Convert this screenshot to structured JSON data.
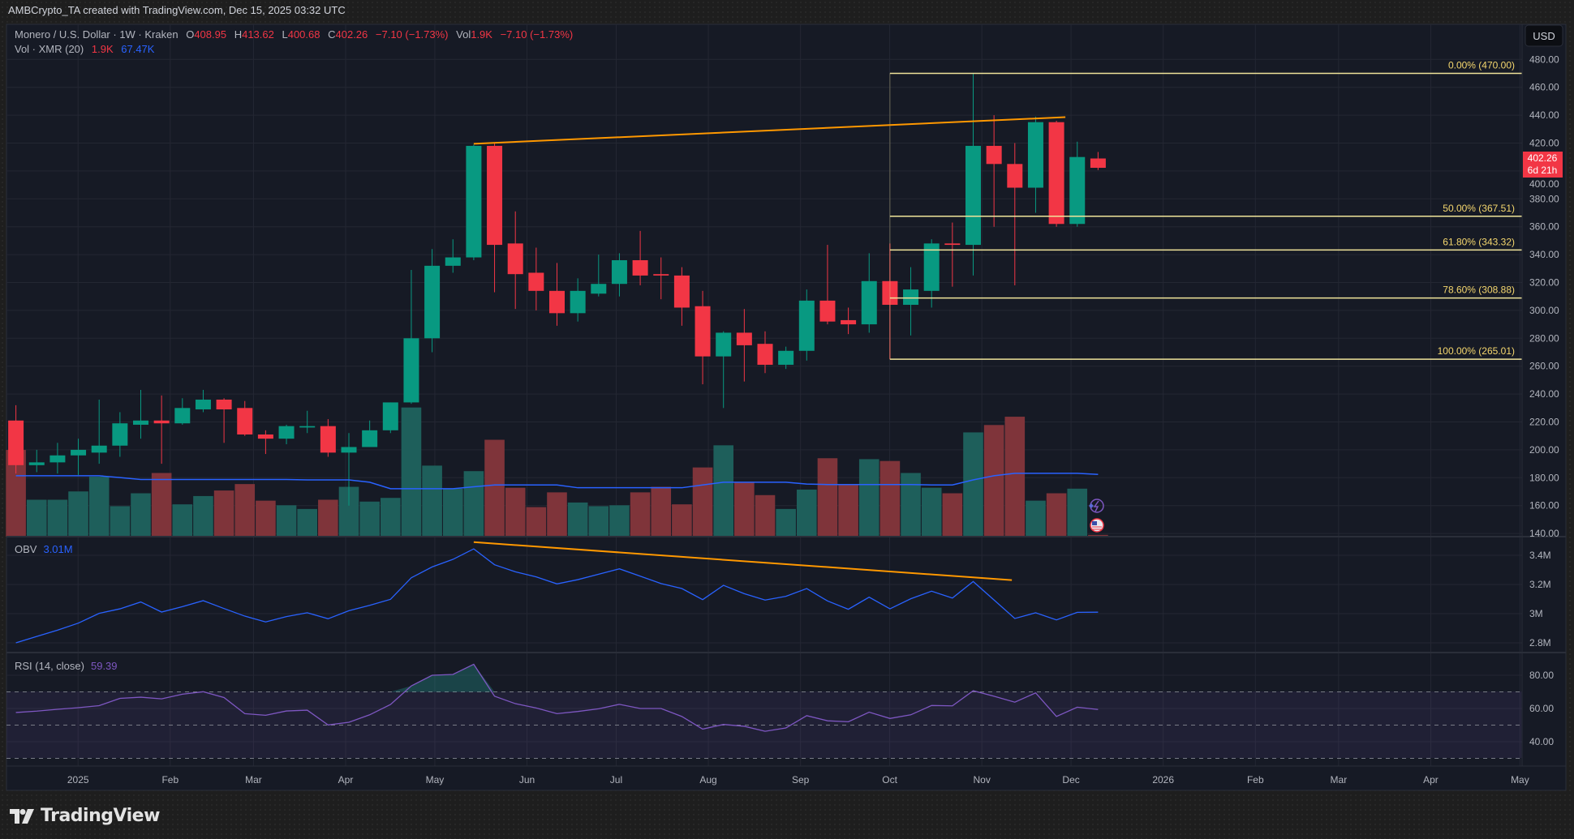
{
  "header": {
    "credit": "AMBCrypto_TA created with TradingView.com, Dec 15, 2025 03:32 UTC"
  },
  "legend": {
    "symbol": "Monero / U.S. Dollar · 1W · Kraken",
    "o_label": "O",
    "o": "408.95",
    "h_label": "H",
    "h": "413.62",
    "l_label": "L",
    "l": "400.68",
    "c_label": "C",
    "c": "402.26",
    "change": "−7.10 (−1.73%)",
    "vol_label": "Vol",
    "vol": "1.9K",
    "vol_change": "−7.10 (−1.73%)",
    "vol_study": "Vol · XMR (20)",
    "vol_value": "1.9K",
    "vol_ma_value": "67.47K",
    "obv_label": "OBV",
    "obv_value": "3.01M",
    "rsi_label": "RSI (14, close)",
    "rsi_value": "59.39"
  },
  "currency_button": "USD",
  "last_price": {
    "price": "402.26",
    "countdown": "6d 21h"
  },
  "logo": {
    "text": "TradingView"
  },
  "colors": {
    "up": "#089981",
    "down": "#f23645",
    "vol_up": "#1e5f5b",
    "vol_down": "#7f343a",
    "obv": "#2962ff",
    "vol_ma": "#2962ff",
    "rsi": "#7e57c2",
    "trendline": "#ff9800",
    "fib": "#f0e49a",
    "fib_text": "#f5d76e",
    "background": "#161a25",
    "grid": "#242733"
  },
  "chart_data": {
    "type": "candlestick",
    "interval": "1W",
    "price_axis": {
      "range": [
        140,
        480
      ],
      "ticks": [
        "480.00",
        "460.00",
        "440.00",
        "420.00",
        "400.00",
        "380.00",
        "360.00",
        "340.00",
        "320.00",
        "300.00",
        "280.00",
        "260.00",
        "240.00",
        "220.00",
        "200.00",
        "180.00",
        "160.00",
        "140.00"
      ]
    },
    "time_axis": {
      "ticks": [
        {
          "label": "2025",
          "date": "2025-01-01"
        },
        {
          "label": "Feb",
          "date": "2025-02-01"
        },
        {
          "label": "Mar",
          "date": "2025-03-01"
        },
        {
          "label": "Apr",
          "date": "2025-04-01"
        },
        {
          "label": "May",
          "date": "2025-05-01"
        },
        {
          "label": "Jun",
          "date": "2025-06-01"
        },
        {
          "label": "Jul",
          "date": "2025-07-01"
        },
        {
          "label": "Aug",
          "date": "2025-08-01"
        },
        {
          "label": "Sep",
          "date": "2025-09-01"
        },
        {
          "label": "Oct",
          "date": "2025-10-01"
        },
        {
          "label": "Nov",
          "date": "2025-11-01"
        },
        {
          "label": "Dec",
          "date": "2025-12-01"
        },
        {
          "label": "2026",
          "date": "2026-01-01"
        },
        {
          "label": "Feb",
          "date": "2026-02-01"
        },
        {
          "label": "Mar",
          "date": "2026-03-01"
        },
        {
          "label": "Apr",
          "date": "2026-04-01"
        },
        {
          "label": "May",
          "date": "2026-05-01"
        }
      ]
    },
    "dates": [
      "2024-12-16",
      "2024-12-23",
      "2024-12-30",
      "2025-01-06",
      "2025-01-13",
      "2025-01-20",
      "2025-01-27",
      "2025-02-03",
      "2025-02-10",
      "2025-02-17",
      "2025-02-24",
      "2025-03-03",
      "2025-03-10",
      "2025-03-17",
      "2025-03-24",
      "2025-03-31",
      "2025-04-07",
      "2025-04-14",
      "2025-04-21",
      "2025-04-28",
      "2025-05-05",
      "2025-05-12",
      "2025-05-19",
      "2025-05-26",
      "2025-06-02",
      "2025-06-09",
      "2025-06-16",
      "2025-06-23",
      "2025-06-30",
      "2025-07-07",
      "2025-07-14",
      "2025-07-21",
      "2025-07-28",
      "2025-08-04",
      "2025-08-11",
      "2025-08-18",
      "2025-08-25",
      "2025-09-01",
      "2025-09-08",
      "2025-09-15",
      "2025-09-22",
      "2025-09-29",
      "2025-10-06",
      "2025-10-13",
      "2025-10-20",
      "2025-10-27",
      "2025-11-03",
      "2025-11-10",
      "2025-11-17",
      "2025-11-24",
      "2025-12-01",
      "2025-12-08",
      "2025-12-15"
    ],
    "ohlc": [
      [
        221,
        232,
        183,
        189
      ],
      [
        189,
        200,
        184,
        191
      ],
      [
        191,
        205,
        183,
        196
      ],
      [
        196,
        208,
        182,
        200
      ],
      [
        198,
        236,
        190,
        203
      ],
      [
        203,
        227,
        195,
        219
      ],
      [
        218,
        243,
        208,
        221
      ],
      [
        221,
        239,
        190,
        219
      ],
      [
        219,
        237,
        218,
        230
      ],
      [
        229,
        243,
        227,
        236
      ],
      [
        236,
        237,
        205,
        229
      ],
      [
        230,
        235,
        210,
        211
      ],
      [
        211,
        214,
        197,
        208
      ],
      [
        208,
        218,
        204,
        217
      ],
      [
        216,
        228,
        212,
        217
      ],
      [
        217,
        222,
        195,
        198
      ],
      [
        198,
        212,
        160,
        202
      ],
      [
        202,
        221,
        202,
        214
      ],
      [
        214,
        234,
        212,
        234
      ],
      [
        234,
        329,
        233,
        280
      ],
      [
        280,
        344,
        270,
        332
      ],
      [
        332,
        351,
        327,
        338
      ],
      [
        338,
        419,
        336,
        418
      ],
      [
        418,
        420,
        313,
        347
      ],
      [
        348,
        371,
        301,
        326
      ],
      [
        327,
        345,
        300,
        314
      ],
      [
        314,
        334,
        289,
        298
      ],
      [
        298,
        323,
        292,
        314
      ],
      [
        312,
        340,
        310,
        319
      ],
      [
        319,
        341,
        310,
        336
      ],
      [
        336,
        357,
        318,
        325
      ],
      [
        326,
        338,
        308,
        325
      ],
      [
        325,
        331,
        289,
        302
      ],
      [
        303,
        314,
        247,
        267
      ],
      [
        267,
        285,
        230,
        284
      ],
      [
        284,
        301,
        249,
        275
      ],
      [
        276,
        285,
        255,
        261
      ],
      [
        261,
        274,
        258,
        271
      ],
      [
        271,
        315,
        264,
        307
      ],
      [
        307,
        347,
        290,
        292
      ],
      [
        293,
        302,
        283,
        290
      ],
      [
        290,
        341,
        284,
        321
      ],
      [
        321,
        348,
        265.01,
        304
      ],
      [
        304,
        331,
        282,
        315
      ],
      [
        314,
        351,
        302,
        348
      ],
      [
        348,
        363,
        317,
        347
      ],
      [
        347,
        470,
        325,
        418
      ],
      [
        418,
        440,
        360,
        405
      ],
      [
        405,
        420,
        318,
        388
      ],
      [
        388,
        439,
        370,
        435
      ],
      [
        435,
        436,
        360,
        362
      ],
      [
        362,
        421,
        360,
        410
      ],
      [
        408.95,
        413.62,
        400.68,
        402.26
      ]
    ],
    "volume_k": [
      94,
      40,
      40,
      49,
      65,
      33,
      47,
      69,
      35,
      44,
      50,
      57,
      39,
      34,
      30,
      40,
      54,
      38,
      42,
      140,
      77,
      52,
      71,
      105,
      53,
      32,
      48,
      37,
      33,
      34,
      48,
      54,
      35,
      75,
      99,
      59,
      45,
      30,
      51,
      85,
      57,
      84,
      82,
      69,
      53,
      47,
      113,
      121,
      130,
      39,
      47,
      52,
      1.9
    ],
    "volume_ma_k": [
      66,
      66,
      66,
      66,
      66,
      64,
      62,
      62,
      62,
      62,
      62,
      62,
      62,
      62,
      61.5,
      61.5,
      61.5,
      59,
      52,
      52,
      52,
      52,
      54,
      56,
      56,
      56,
      56,
      53,
      53,
      53,
      53,
      53,
      53,
      56,
      59,
      59,
      59,
      59,
      57,
      56.5,
      56.5,
      56.5,
      56.5,
      56.5,
      56,
      56,
      61.5,
      66,
      68.6,
      68.6,
      68.6,
      68.6,
      67.47
    ],
    "obv_m": {
      "ticks": [
        "3.4M",
        "3.2M",
        "3M",
        "2.8M"
      ],
      "values": [
        2.8,
        2.844,
        2.887,
        2.935,
        3.002,
        3.033,
        3.08,
        3.011,
        3.048,
        3.089,
        3.035,
        2.983,
        2.943,
        2.98,
        3.006,
        2.965,
        3.02,
        3.057,
        3.098,
        3.246,
        3.32,
        3.372,
        3.444,
        3.335,
        3.287,
        3.252,
        3.204,
        3.233,
        3.27,
        3.307,
        3.257,
        3.206,
        3.172,
        3.096,
        3.194,
        3.137,
        3.093,
        3.119,
        3.172,
        3.087,
        3.03,
        3.113,
        3.033,
        3.102,
        3.154,
        3.107,
        3.22,
        3.094,
        2.967,
        3.006,
        2.957,
        3.009,
        3.01
      ]
    },
    "rsi": {
      "ticks": [
        "80.00",
        "60.00",
        "40.00"
      ],
      "bands": [
        70,
        50,
        30
      ],
      "values": [
        57.6,
        58.4,
        59.5,
        60.5,
        61.7,
        66.1,
        66.8,
        65.8,
        68.6,
        70.1,
        66.6,
        56.9,
        55.9,
        58.5,
        59.0,
        50.1,
        51.7,
        56.2,
        62.4,
        73.6,
        80,
        80.5,
        86.6,
        67.4,
        62.9,
        60.3,
        56.9,
        58.2,
        59.8,
        62.5,
        60,
        60,
        55.2,
        47.6,
        50.4,
        49.3,
        46.3,
        48.3,
        55.7,
        52.6,
        52,
        57.8,
        54,
        56.2,
        61.8,
        61.6,
        70.7,
        67.4,
        63.8,
        69.4,
        55.2,
        60.8,
        59.39
      ]
    },
    "drawings": {
      "price_trendline": {
        "from": {
          "date": "2025-05-19",
          "price": 419.5
        },
        "to": {
          "date": "2025-12-04",
          "price": 438.6
        }
      },
      "obv_trendline": {
        "from": {
          "date": "2025-05-19",
          "value": 3.49
        },
        "to": {
          "date": "2025-11-16",
          "value": 3.23
        }
      },
      "fib_retracement": {
        "start_date": "2025-10-06",
        "levels": [
          {
            "label": "0.00% (470.00)",
            "price": 470.0
          },
          {
            "label": "50.00% (367.51)",
            "price": 367.51
          },
          {
            "label": "61.80% (343.32)",
            "price": 343.32
          },
          {
            "label": "78.60% (308.88)",
            "price": 308.88
          },
          {
            "label": "100.00% (265.01)",
            "price": 265.01
          }
        ]
      }
    }
  }
}
